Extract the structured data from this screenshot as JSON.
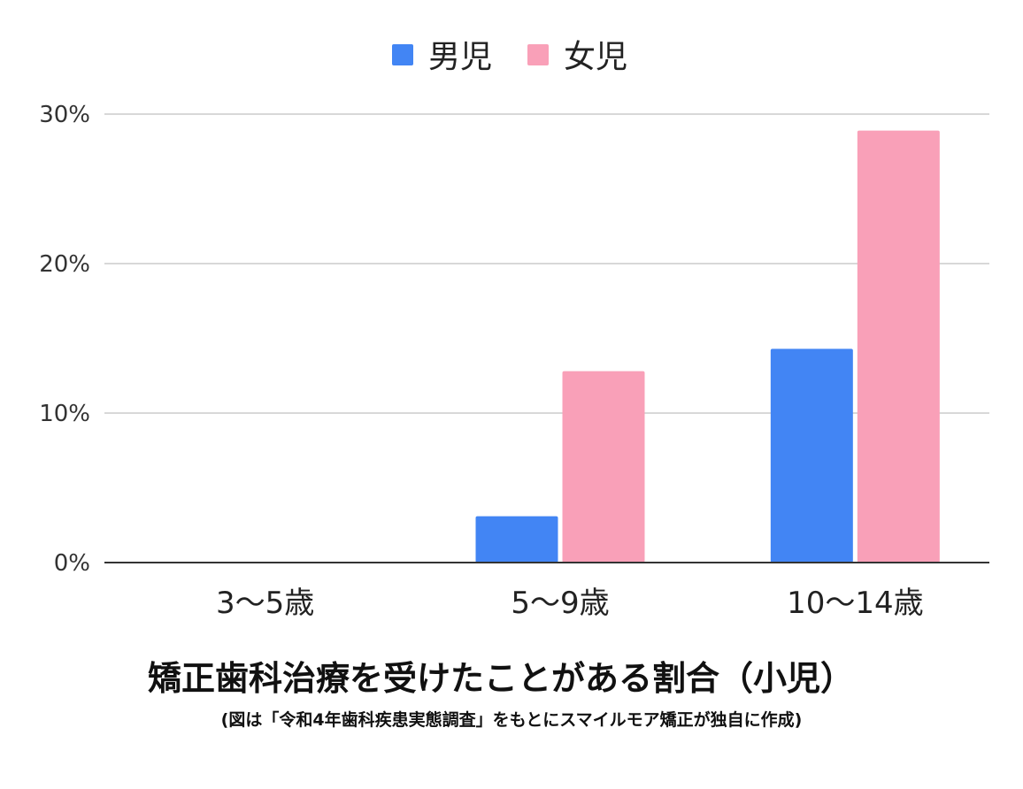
{
  "chart_data": {
    "type": "bar",
    "categories": [
      "3～5歳",
      "5～9歳",
      "10～14歳"
    ],
    "series": [
      {
        "name": "男児",
        "values": [
          0,
          3.1,
          14.3
        ],
        "color": "#4285f4"
      },
      {
        "name": "女児",
        "values": [
          0,
          12.8,
          28.9
        ],
        "color": "#f9a0b8"
      }
    ],
    "yticks": [
      "0%",
      "10%",
      "20%",
      "30%"
    ],
    "ylim": [
      0,
      30
    ],
    "grid": true,
    "legend": "top-center",
    "title": "矯正歯科治療を受けたことがある割合（小児）",
    "subtitle": "(図は「令和4年歯科疾患実態調査」をもとにスマイルモア矯正が独自に作成)"
  }
}
